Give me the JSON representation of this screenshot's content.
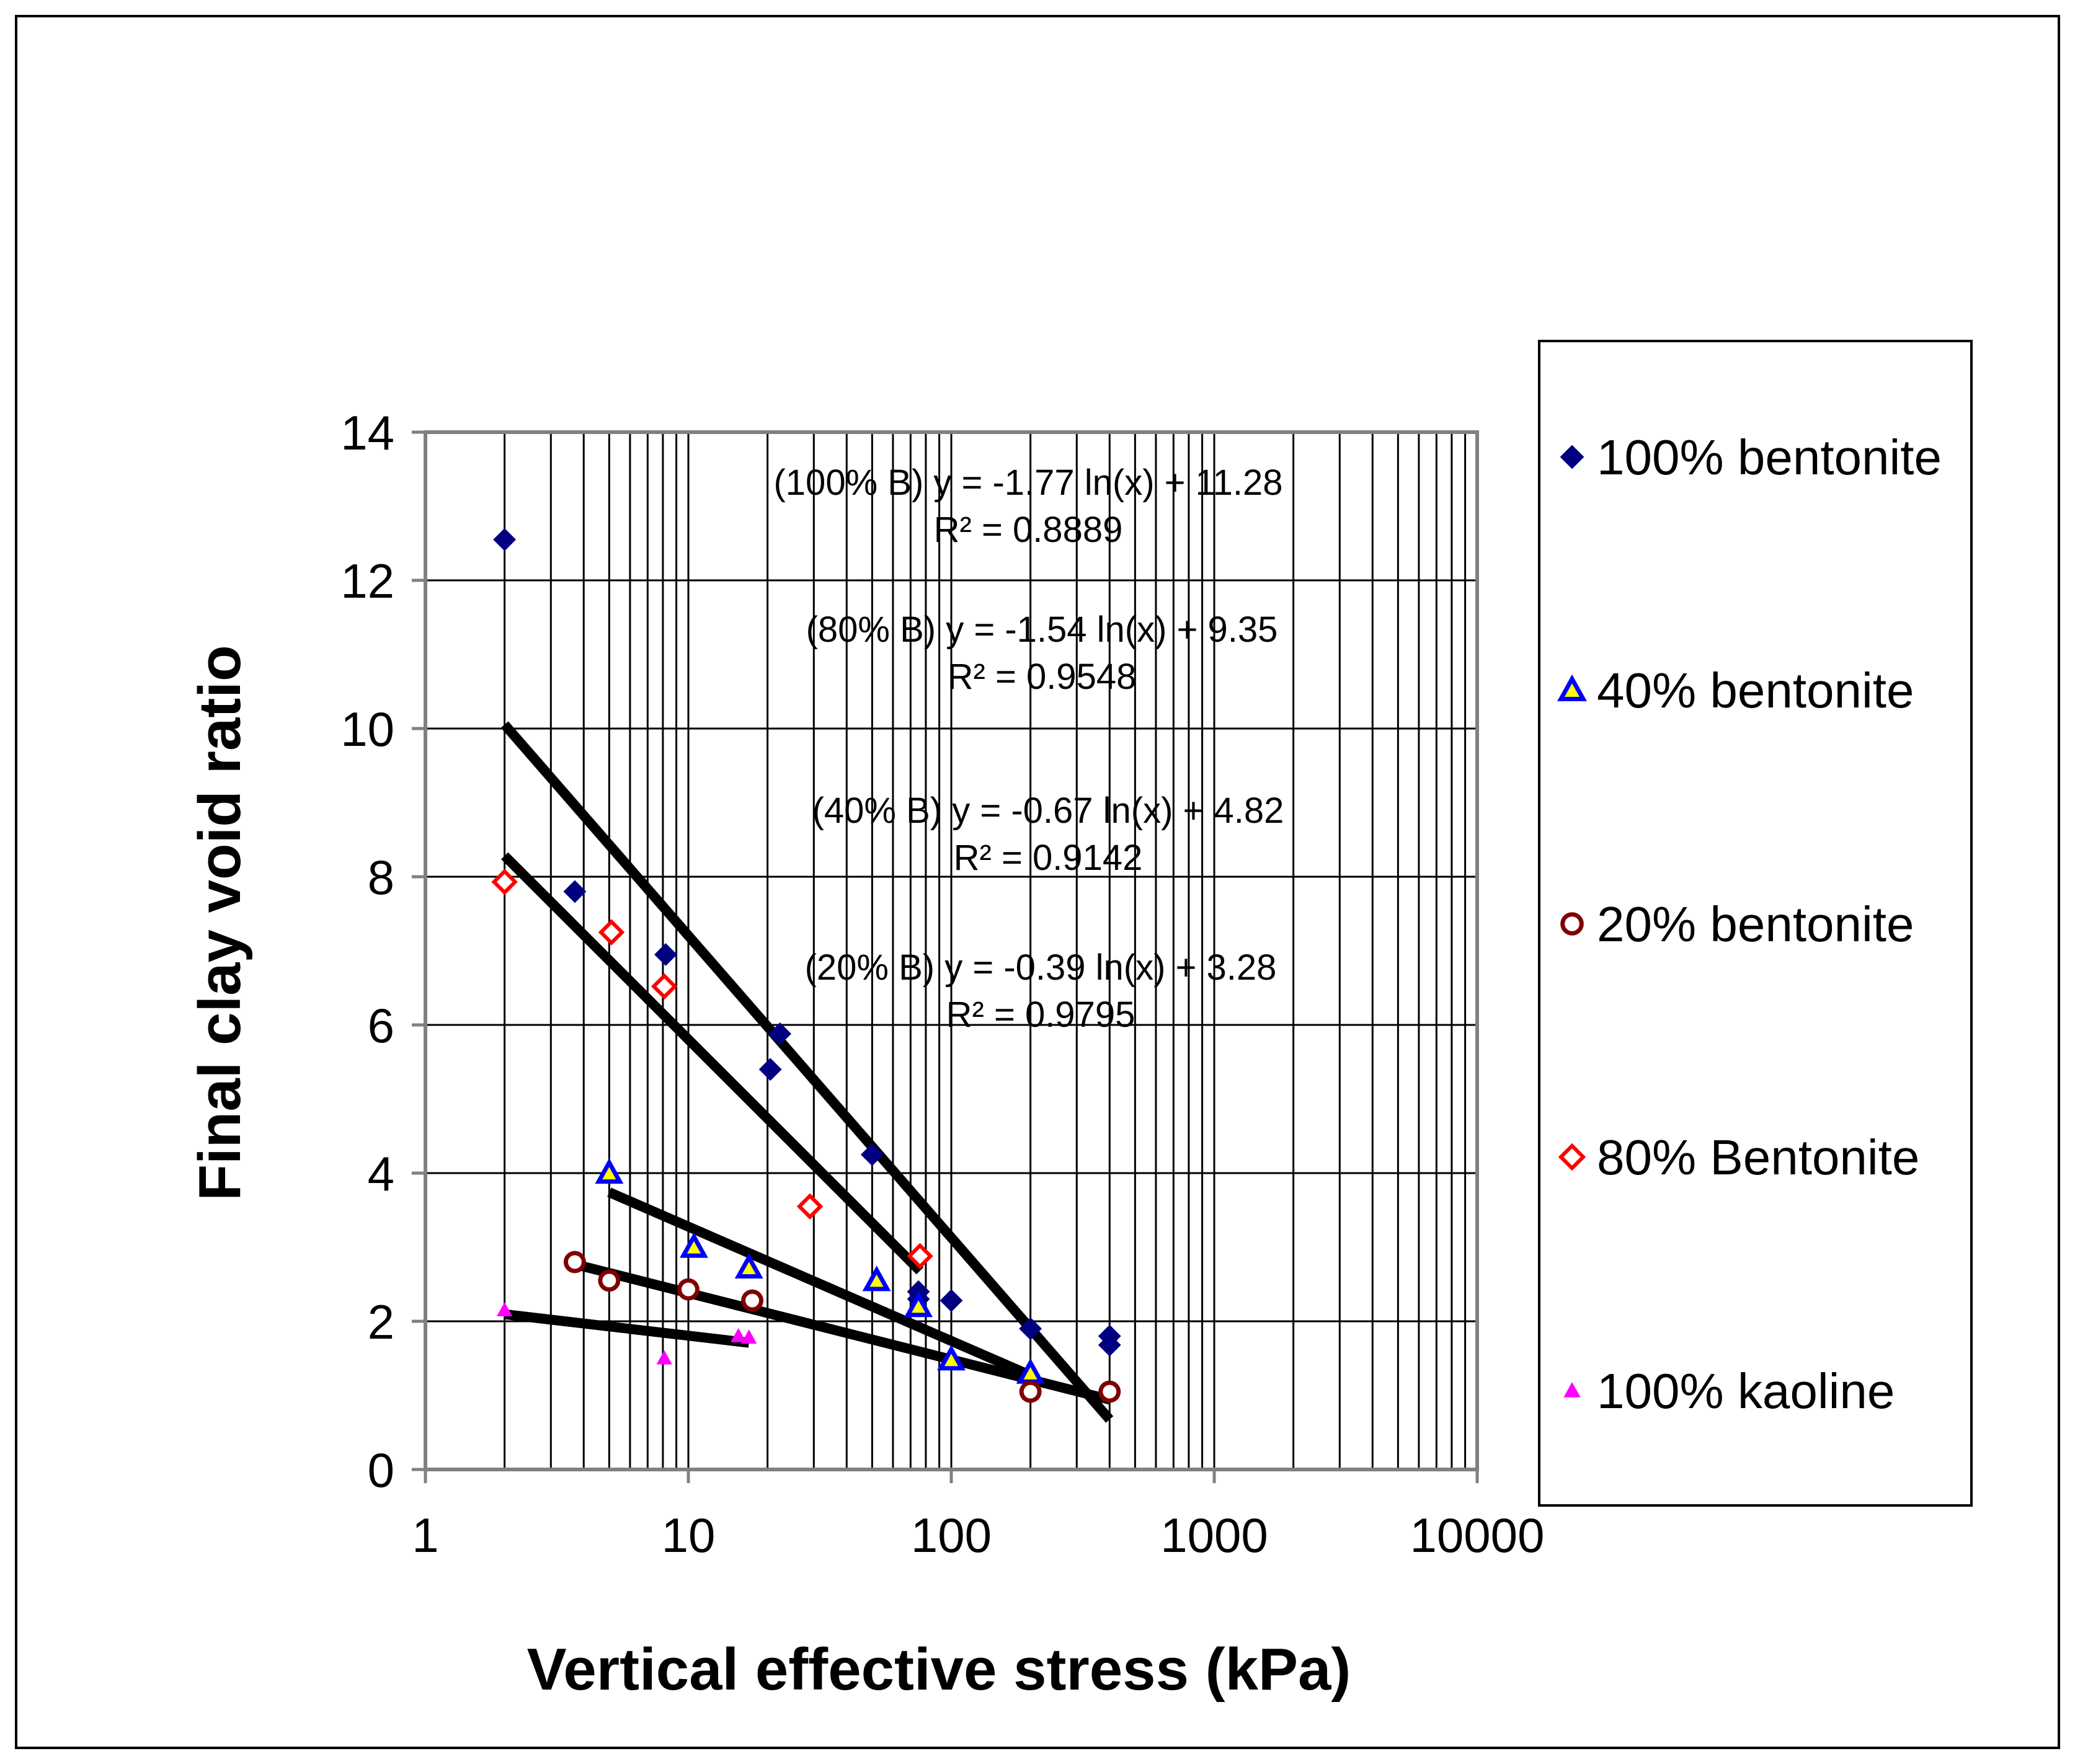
{
  "chart_data": {
    "type": "scatter",
    "x_scale": "log",
    "xlim": [
      1,
      10000
    ],
    "ylim": [
      0,
      14
    ],
    "xlabel": "Vertical effective stress (kPa)",
    "ylabel": "Final clay void ratio",
    "x_ticks": [
      "1",
      "10",
      "100",
      "1000",
      "10000"
    ],
    "y_ticks": [
      "0",
      "2",
      "4",
      "6",
      "8",
      "10",
      "12",
      "14"
    ],
    "grid": {
      "vertical_minor_log": true,
      "horizontal_major": true
    },
    "legend_position": "right",
    "series": [
      {
        "name": "100% bentonite",
        "marker": "diamond-filled",
        "color": "#000080",
        "x": [
          2,
          3.7,
          8.2,
          20.5,
          22.3,
          50,
          75,
          75,
          100,
          200,
          400,
          400
        ],
        "y": [
          12.55,
          7.8,
          6.95,
          5.4,
          5.88,
          4.25,
          2.4,
          2.3,
          2.28,
          1.9,
          1.8,
          1.68
        ]
      },
      {
        "name": "40% bentonite",
        "marker": "triangle-open",
        "color": "#0000ff",
        "fill": "#ffff00",
        "x": [
          5,
          10.5,
          17,
          52,
          75,
          100,
          200
        ],
        "y": [
          4.0,
          3.0,
          2.72,
          2.55,
          2.2,
          1.48,
          1.3
        ]
      },
      {
        "name": "20% bentonite",
        "marker": "circle-open",
        "color": "#800000",
        "x": [
          3.7,
          5,
          10,
          17.5,
          200,
          400
        ],
        "y": [
          2.8,
          2.55,
          2.43,
          2.28,
          1.05,
          1.05
        ]
      },
      {
        "name": "80% Bentonite",
        "marker": "diamond-open",
        "color": "#ff0000",
        "x": [
          2,
          5.1,
          8.1,
          29,
          76
        ],
        "y": [
          7.93,
          7.25,
          6.52,
          3.55,
          2.88
        ]
      },
      {
        "name": "100% kaoline",
        "marker": "triangle-filled",
        "color": "#ff00ff",
        "x": [
          2,
          8.1,
          15.5,
          17
        ],
        "y": [
          2.15,
          1.5,
          1.8,
          1.78
        ]
      }
    ],
    "trendlines": [
      {
        "series": "100% bentonite",
        "slope": -1.77,
        "intercept": 11.28,
        "x_range": [
          2,
          400
        ],
        "equation": "(100% B) y = -1.77 ln(x) + 11.28",
        "r2": "R² = 0.8889"
      },
      {
        "series": "80% Bentonite",
        "slope": -1.54,
        "intercept": 9.35,
        "x_range": [
          2,
          76
        ],
        "equation": "(80% B) y = -1.54 ln(x) + 9.35",
        "r2": "R² = 0.9548"
      },
      {
        "series": "40% bentonite",
        "slope": -0.67,
        "intercept": 4.82,
        "x_range": [
          5,
          200
        ],
        "equation": "(40% B) y = -0.67 ln(x) + 4.82",
        "r2": "R² = 0.9142"
      },
      {
        "series": "20% bentonite",
        "slope": -0.39,
        "intercept": 3.28,
        "x_range": [
          3.7,
          400
        ],
        "equation": "(20% B) y = -0.39 ln(x) + 3.28",
        "r2": "R² = 0.9795"
      },
      {
        "series": "100% kaoline",
        "slope": -0.18,
        "intercept": 2.22,
        "x_range": [
          2,
          17
        ]
      }
    ]
  }
}
